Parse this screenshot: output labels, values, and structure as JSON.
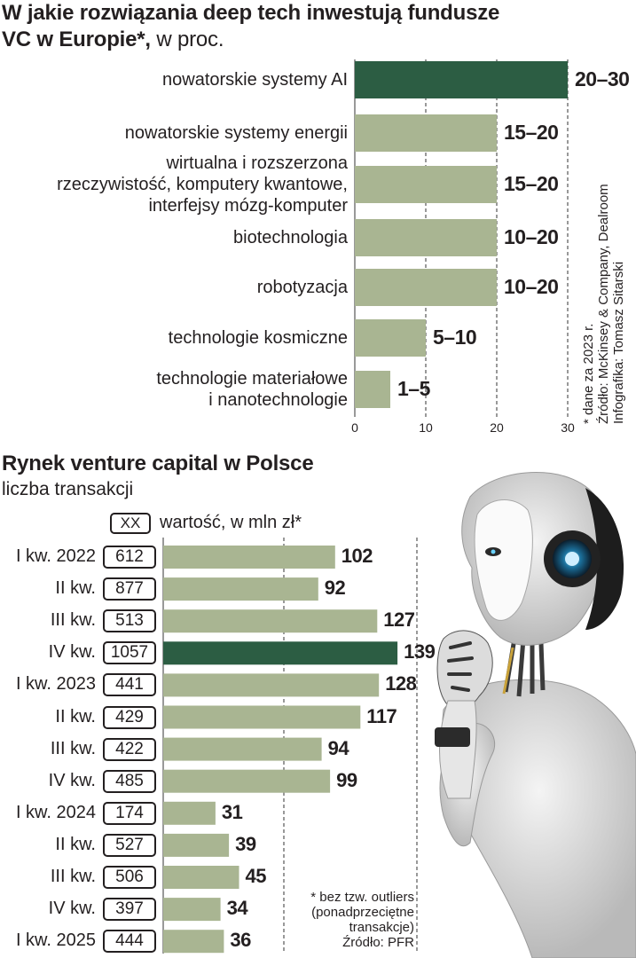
{
  "chart1": {
    "title_bold": "W jakie rozwiązania deep tech inwestują fundusze VC w Europie*,",
    "title_rest": " w proc.",
    "title_line1": "W jakie rozwiązania deep tech inwestują fundusze",
    "title_line2_bold": "VC w Europie*,",
    "title_line2_rest": " w proc.",
    "ticks": [
      "0",
      "10",
      "20",
      "30"
    ],
    "notes": [
      "* dane za 2023 r.",
      "Źródło: McKinsey & Company, Dealroom",
      "Infografika: Tomasz Sitarski"
    ]
  },
  "chart2": {
    "title": "Rynek venture capital w Polsce",
    "subtitle": "liczba transakcji",
    "legend_box": "XX",
    "legend_text": "wartość, w mln zł*",
    "notes": [
      "* bez tzw. outliers",
      "(ponadprzeciętne",
      "transakcje)",
      "Źródło: PFR"
    ]
  },
  "colors": {
    "bar": "#a9b592",
    "highlight": "#2c5d43",
    "grid": "#333333"
  },
  "chart_data": [
    {
      "type": "bar",
      "orientation": "horizontal",
      "title": "W jakie rozwiązania deep tech inwestują fundusze VC w Europie*, w proc.",
      "categories": [
        "nowatorskie systemy AI",
        "nowatorskie systemy energii",
        "wirtualna i rozszerzona rzeczywistość, komputery kwantowe, interfejsy mózg-komputer",
        "biotechnologia",
        "robotyzacja",
        "technologie kosmiczne",
        "technologie materiałowe i nanotechnologie"
      ],
      "category_lines": [
        [
          "nowatorskie systemy AI"
        ],
        [
          "nowatorskie systemy energii"
        ],
        [
          "wirtualna i rozszerzona",
          "rzeczywistość, komputery kwantowe,",
          "interfejsy mózg-komputer"
        ],
        [
          "biotechnologia"
        ],
        [
          "robotyzacja"
        ],
        [
          "technologie kosmiczne"
        ],
        [
          "technologie materiałowe",
          "i nanotechnologie"
        ]
      ],
      "ranges": [
        [
          20,
          30
        ],
        [
          15,
          20
        ],
        [
          15,
          20
        ],
        [
          10,
          20
        ],
        [
          10,
          20
        ],
        [
          5,
          10
        ],
        [
          1,
          5
        ]
      ],
      "labels": [
        "20–30",
        "15–20",
        "15–20",
        "10–20",
        "10–20",
        "5–10",
        "1–5"
      ],
      "highlight_index": 0,
      "xlim": [
        0,
        30
      ],
      "xticks": [
        0,
        10,
        20,
        30
      ],
      "grid": true
    },
    {
      "type": "bar",
      "orientation": "horizontal",
      "title": "Rynek venture capital w Polsce",
      "subtitle": "liczba transakcji",
      "categories": [
        "I kw. 2022",
        "II kw.",
        "III kw.",
        "IV kw.",
        "I kw. 2023",
        "II kw.",
        "III kw.",
        "IV kw.",
        "I kw. 2024",
        "II kw.",
        "III kw.",
        "IV kw.",
        "I kw. 2025"
      ],
      "values": [
        102,
        92,
        127,
        139,
        128,
        117,
        94,
        99,
        31,
        39,
        45,
        34,
        36
      ],
      "values_mln_zl": [
        "612",
        "877",
        "513",
        "1057",
        "441",
        "429",
        "422",
        "485",
        "174",
        "527",
        "506",
        "397",
        "444"
      ],
      "highlight_index": 3,
      "xlim": [
        0,
        140
      ],
      "grid": true
    }
  ]
}
